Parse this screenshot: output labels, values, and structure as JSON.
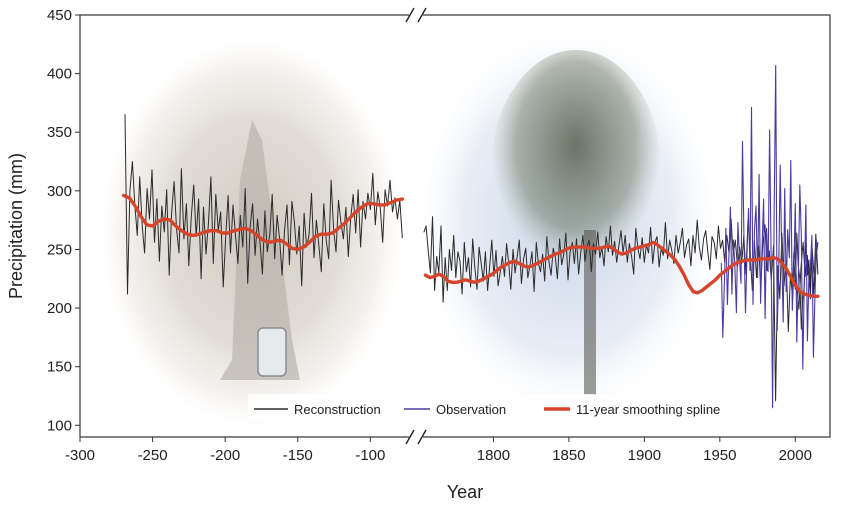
{
  "chart_data": {
    "type": "line",
    "xlabel": "Year",
    "ylabel": "Precipitation (mm)",
    "ylim": [
      90,
      450
    ],
    "y_ticks": [
      "100",
      "150",
      "200",
      "250",
      "300",
      "350",
      "400",
      "450"
    ],
    "x_ticks_left": [
      "-300",
      "-250",
      "-200",
      "-150",
      "-100"
    ],
    "x_ticks_right": [
      "1800",
      "1850",
      "1900",
      "1950",
      "2000"
    ],
    "x_domain_left": [
      -300,
      -72
    ],
    "x_domain_right": [
      1752,
      2023
    ],
    "axis_break": true,
    "legend": {
      "placement": "bottom-right",
      "items": [
        {
          "label": "Reconstruction",
          "color": "#2b2b2b"
        },
        {
          "label": "Observation",
          "color": "#4b3aa0"
        },
        {
          "label": "11-year smoothing spline",
          "color": "#d6452b"
        }
      ]
    },
    "background_images": [
      "dead-tree-stump-photo",
      "living-pine-tree-photo"
    ],
    "series": [
      {
        "name": "Reconstruction",
        "color": "#2b2b2b",
        "segments": [
          {
            "x_start": -269,
            "x_end": -78,
            "values": [
              365,
              212,
              300,
              325,
              288,
              262,
              312,
              270,
              247,
              302,
              276,
              318,
              256,
              293,
              240,
              287,
              265,
              301,
              228,
              281,
              308,
              268,
              247,
              319,
              259,
              289,
              236,
              278,
              305,
              261,
              293,
              225,
              286,
              246,
              272,
              312,
              238,
              297,
              266,
              282,
              218,
              259,
              296,
              247,
              288,
              263,
              238,
              279,
              252,
              302,
              221,
              270,
              289,
              245,
              276,
              256,
              229,
              283,
              248,
              263,
              297,
              242,
              279,
              259,
              228,
              266,
              288,
              237,
              291,
              274,
              246,
              270,
              219,
              281,
              252,
              262,
              298,
              243,
              275,
              253,
              231,
              289,
              258,
              242,
              309,
              267,
              248,
              292,
              273,
              259,
              286,
              244,
              278,
              297,
              264,
              301,
              252,
              291,
              276,
              298,
              284,
              315,
              271,
              299,
              286,
              256,
              301,
              287,
              309,
              282,
              294,
              276,
              292,
              260
            ]
          },
          {
            "x_start": 1754,
            "x_end": 2015,
            "values": [
              265,
              270,
              248,
              230,
              278,
              215,
              244,
              230,
              270,
              205,
              243,
              215,
              250,
              232,
              262,
              226,
              248,
              240,
              212,
              256,
              231,
              243,
              218,
              259,
              235,
              216,
              252,
              238,
              223,
              248,
              215,
              236,
              258,
              227,
              249,
              219,
              231,
              244,
              227,
              255,
              238,
              216,
              250,
              230,
              244,
              258,
              221,
              242,
              251,
              226,
              236,
              248,
              214,
              256,
              238,
              231,
              246,
              223,
              261,
              239,
              228,
              251,
              244,
              225,
              259,
              237,
              246,
              264,
              224,
              248,
              256,
              238,
              259,
              229,
              247,
              262,
              240,
              253,
              258,
              231,
              255,
              246,
              265,
              243,
              252,
              236,
              261,
              248,
              270,
              245,
              257,
              239,
              253,
              266,
              247,
              262,
              239,
              255,
              244,
              229,
              268,
              251,
              242,
              260,
              239,
              254,
              247,
              269,
              238,
              256,
              261,
              235,
              251,
              245,
              273,
              242,
              258,
              249,
              238,
              262,
              247,
              256,
              268,
              243,
              254,
              259,
              236,
              262,
              247,
              275,
              252,
              241,
              259,
              266,
              248,
              233,
              261,
              256,
              242,
              270,
              251,
              258,
              239,
              262,
              247,
              276,
              245,
              258,
              235,
              252,
              238,
              262,
              229,
              276,
              247,
              215,
              258,
              226,
              253,
              218,
              255,
              271,
              232,
              249,
              224,
              253,
              121,
              236,
              208,
              264,
              219,
              241,
              180,
              228,
              210,
              253,
              218,
              199,
              235,
              256,
              227,
              245,
              218,
              240,
              212,
              263,
              229
            ]
          },
          {
            "x_start": 1998,
            "x_end": 2015,
            "values": [
              208,
              247,
              216,
              264,
              236,
              225,
              182,
              208,
              219,
              256,
              228,
              241,
              208,
              253,
              236,
              217,
              246,
              256
            ]
          }
        ]
      },
      {
        "name": "Observation",
        "color": "#4b3aa0",
        "x_start": 1951,
        "x_end": 2014,
        "values": [
          238,
          175,
          222,
          268,
          203,
          244,
          286,
          212,
          258,
          235,
          196,
          273,
          245,
          221,
          342,
          258,
          196,
          246,
          285,
          232,
          371,
          203,
          267,
          287,
          226,
          314,
          204,
          252,
          293,
          191,
          268,
          231,
          352,
          245,
          115,
          287,
          407,
          181,
          232,
          322,
          246,
          188,
          302,
          214,
          267,
          243,
          326,
          198,
          232,
          289,
          171,
          225,
          305,
          262,
          148,
          224,
          288,
          172,
          226,
          235,
          262,
          158,
          209,
          258
        ]
      },
      {
        "name": "11-year smoothing spline",
        "color": "#d6452b",
        "segments": [
          {
            "x_start": -270,
            "x_end": -78,
            "values": [
              296,
              294,
              287,
              278,
              271,
              270,
              274,
              276,
              275,
              270,
              266,
              263,
              262,
              263,
              265,
              266,
              266,
              264,
              264,
              266,
              267,
              268,
              266,
              262,
              258,
              256,
              257,
              258,
              255,
              251,
              250,
              252,
              256,
              261,
              263,
              263,
              264,
              268,
              272,
              277,
              282,
              286,
              289,
              289,
              288,
              288,
              290,
              292,
              293
            ]
          },
          {
            "x_start": 1755,
            "x_end": 2015,
            "values": [
              228,
              226,
              227,
              229,
              227,
              223,
              222,
              222,
              223,
              224,
              223,
              222,
              223,
              225,
              227,
              229,
              232,
              235,
              237,
              239,
              240,
              238,
              236,
              235,
              236,
              238,
              240,
              242,
              244,
              246,
              247,
              249,
              251,
              252,
              252,
              252,
              252,
              251,
              251,
              251,
              252,
              253,
              251,
              248,
              246,
              247,
              249,
              251,
              252,
              253,
              254,
              256,
              254,
              251,
              248,
              245,
              241,
              235,
              228,
              220,
              214,
              213,
              215,
              218,
              221,
              224,
              228,
              231,
              234,
              237,
              239,
              240,
              241,
              241,
              241,
              242,
              242,
              242,
              243,
              242,
              238,
              233,
              226,
              219,
              214,
              212,
              211,
              210,
              210
            ]
          }
        ]
      }
    ]
  }
}
